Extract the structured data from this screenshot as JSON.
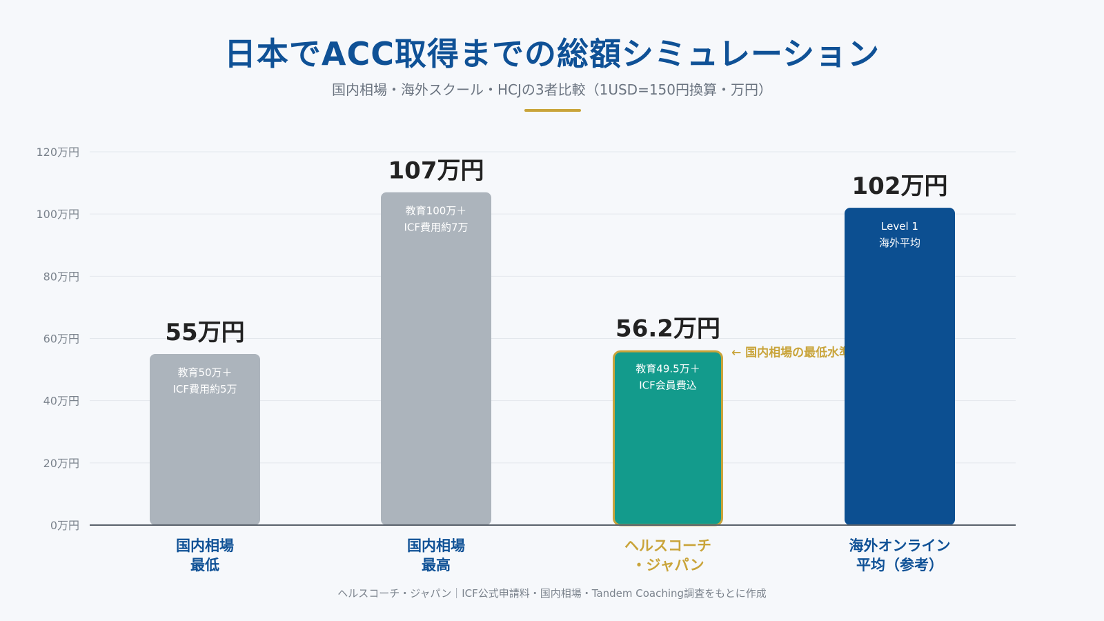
{
  "header": {
    "title": "日本でACC取得までの総額シミュレーション",
    "subtitle": "国内相場・海外スクール・HCJの3者比較（1USD=150円換算・万円）"
  },
  "footer": {
    "note": "ヘルスコーチ・ジャパン｜ICF公式申請料・国内相場・Tandem Coaching調査をもとに作成"
  },
  "colors": {
    "title": "#0f5196",
    "gold": "#c9a43a",
    "gray_bar": "#acb4bc",
    "teal_bar": "#139b8c",
    "navy_bar": "#0c4f91",
    "axis_text": "#7b838d",
    "value_text": "#222222"
  },
  "chart_data": {
    "type": "bar",
    "ylim": [
      0,
      120
    ],
    "yticks": [
      0,
      20,
      40,
      60,
      80,
      100,
      120
    ],
    "ytick_suffix": "万円",
    "grid": true,
    "categories": [
      [
        "国内相場",
        "最低"
      ],
      [
        "国内相場",
        "最高"
      ],
      [
        "ヘルスコーチ",
        "・ジャパン"
      ],
      [
        "海外オンライン",
        "平均（参考）"
      ]
    ],
    "values": [
      55,
      107,
      56.2,
      102
    ],
    "value_labels": [
      "55万円",
      "107万円",
      "56.2万円",
      "102万円"
    ],
    "bar_notes": [
      [
        "教育50万＋",
        "ICF費用約5万"
      ],
      [
        "教育100万＋",
        "ICF費用約7万"
      ],
      [
        "教育49.5万＋",
        "ICF会員費込"
      ],
      [
        "Level 1",
        "海外平均"
      ]
    ],
    "bar_colors": [
      "#acb4bc",
      "#acb4bc",
      "#139b8c",
      "#0c4f91"
    ],
    "category_colors": [
      "#0f5196",
      "#0f5196",
      "#c9a43a",
      "#0f5196"
    ],
    "highlight_index": 2,
    "annotation": "← 国内相場の最低水準を実現"
  }
}
